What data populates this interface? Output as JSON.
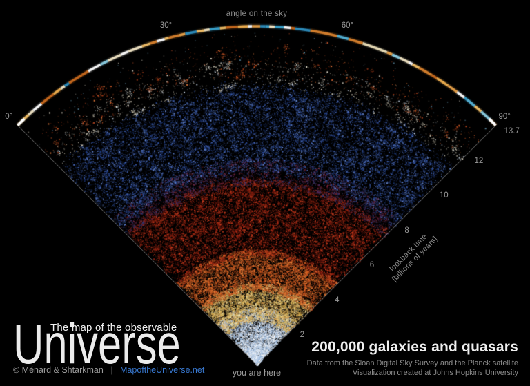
{
  "labels": {
    "top_axis": "angle on the sky",
    "origin": "you are here",
    "lookback_line1": "lookback time",
    "lookback_line2": "[billions of years]"
  },
  "title_block": {
    "subtitle": "The map of the observable",
    "title": "Universe",
    "credit": "© Ménard & Shtarkman",
    "separator": "|",
    "website": "MapoftheUniverse.net"
  },
  "stats_block": {
    "headline": "200,000 galaxies and quasars",
    "line1": "Data from the Sloan Digital Sky Survey and the Planck satellite",
    "line2": "Visualization created at Johns Hopkins University"
  },
  "colors": {
    "background": "#000000",
    "label_gray": "#9a9a9a",
    "dim_gray": "#8d8d8d",
    "link_blue": "#3878d0",
    "edge_line": "#9a9a9a",
    "headline_white": "#efefef"
  },
  "chart_data": {
    "type": "scatter",
    "projection": "polar-wedge-sector",
    "title": "The map of the observable Universe",
    "point_count_label": "200,000 galaxies and quasars",
    "origin_label": "you are here",
    "angular_axis": {
      "label": "angle on the sky",
      "unit": "degrees",
      "range": [
        0,
        90
      ],
      "ticks": [
        {
          "value": 0,
          "label": "0°"
        },
        {
          "value": 30,
          "label": "30°"
        },
        {
          "value": 60,
          "label": "60°"
        },
        {
          "value": 90,
          "label": "90°"
        }
      ]
    },
    "radial_axis": {
      "label_line1": "lookback time",
      "label_line2": "[billions of years]",
      "range": [
        0,
        13.7
      ],
      "ticks": [
        {
          "value": 2,
          "label": "2"
        },
        {
          "value": 4,
          "label": "4"
        },
        {
          "value": 6,
          "label": "6"
        },
        {
          "value": 8,
          "label": "8"
        },
        {
          "value": 10,
          "label": "10"
        },
        {
          "value": 12,
          "label": "12"
        },
        {
          "value": 13.7,
          "label": "13.7"
        }
      ]
    },
    "bands": [
      {
        "name": "nearby-galaxies-white-blue",
        "r0": 0.0,
        "r1": 0.17,
        "count": 9000,
        "colors": [
          "#f2f6fc",
          "#cfdcef",
          "#a9c4e4",
          "#8fb2da",
          "#ffffff"
        ],
        "bias": "vertex",
        "cluster": 0.35
      },
      {
        "name": "yellow-galaxies",
        "r0": 0.13,
        "r1": 0.24,
        "count": 8000,
        "colors": [
          "#e6cc7a",
          "#d8b455",
          "#c49a3e",
          "#f0e2a8",
          "#d89a50"
        ],
        "cluster": 0.4
      },
      {
        "name": "orange-galaxies",
        "r0": 0.22,
        "r1": 0.34,
        "count": 10000,
        "colors": [
          "#e0702e",
          "#c85222",
          "#ef8a40",
          "#a84016",
          "#d86020"
        ],
        "cluster": 0.4
      },
      {
        "name": "red-galaxies",
        "r0": 0.32,
        "r1": 0.55,
        "count": 17000,
        "colors": [
          "#b02a16",
          "#8f2010",
          "#d04222",
          "#6f150a",
          "#c03a1c",
          "#55100a"
        ],
        "cluster": 0.45
      },
      {
        "name": "red-blue-transition",
        "r0": 0.53,
        "r1": 0.61,
        "count": 5200,
        "colors": [
          "#702038",
          "#4a2a60",
          "#8e2a2a",
          "#2c3c7c",
          "#3a3050"
        ],
        "cluster": 0.35
      },
      {
        "name": "blue-quasars",
        "r0": 0.57,
        "r1": 0.84,
        "count": 19000,
        "colors": [
          "#2a4a9a",
          "#1c3a7e",
          "#3c5cae",
          "#15285c",
          "#4a6cc0",
          "#6a8cd6"
        ],
        "cluster": 0.3,
        "fade_outer": 0.05
      },
      {
        "name": "outer-white-sparse",
        "r0": 0.82,
        "r1": 0.9,
        "count": 1500,
        "colors": [
          "#ded6c4",
          "#ece6d4",
          "#c9c1ab",
          "#bccadb"
        ],
        "cluster": 0.5
      },
      {
        "name": "outer-red-sparse",
        "r0": 0.85,
        "r1": 0.945,
        "count": 1000,
        "colors": [
          "#b5441f",
          "#d25c28",
          "#963312",
          "#e2793a"
        ],
        "cluster": 0.45
      },
      {
        "name": "stray-dots",
        "r0": 0.9,
        "r1": 0.985,
        "count": 160,
        "colors": [
          "#d8d0c0",
          "#c05028",
          "#7ab6d6"
        ],
        "cluster": 0
      }
    ],
    "cmb_arc": {
      "radius_fraction": 1.0,
      "warm_colors": [
        "#e8a14a",
        "#d9822e",
        "#f2c068",
        "#c96a1e",
        "#f0b050"
      ],
      "cool_colors": [
        "#56b4d8",
        "#2e8fc0",
        "#8cd0e4",
        "#3aa2cc"
      ],
      "cream_colors": [
        "#f2e6c6",
        "#ece0ba",
        "#ffffff"
      ],
      "tip_color": "#ffffff"
    }
  }
}
